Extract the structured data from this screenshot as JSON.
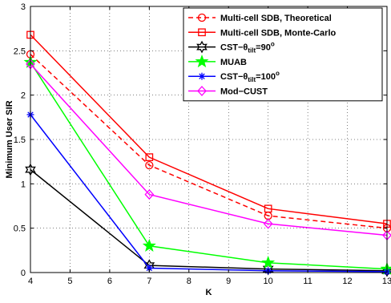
{
  "chart_data": {
    "type": "line",
    "xlabel": "K",
    "ylabel": "Minimum User SIR",
    "xlim": [
      4,
      13
    ],
    "ylim": [
      0,
      3
    ],
    "xticks": [
      4,
      5,
      6,
      7,
      8,
      9,
      10,
      11,
      12,
      13
    ],
    "yticks": [
      0,
      0.5,
      1,
      1.5,
      2,
      2.5,
      3
    ],
    "grid": true,
    "legend_position": "top-right",
    "x": [
      4,
      7,
      10,
      13
    ],
    "series": [
      {
        "name": "Multi-cell SDB, Theoretical",
        "values": [
          2.46,
          1.21,
          0.64,
          0.5
        ],
        "color": "#ff0000",
        "dash": "dashed",
        "marker": "circle"
      },
      {
        "name": "Multi-cell SDB, Monte-Carlo",
        "values": [
          2.68,
          1.3,
          0.72,
          0.55
        ],
        "color": "#ff0000",
        "dash": "solid",
        "marker": "square"
      },
      {
        "name": "CST−θ_tilt=90°",
        "legend": {
          "pre": "CST−θ",
          "sub": "tilt",
          "mid": "=90",
          "sup": "o"
        },
        "values": [
          1.16,
          0.08,
          0.04,
          0.02
        ],
        "color": "#000000",
        "dash": "solid",
        "marker": "hexagram"
      },
      {
        "name": "MUAB",
        "values": [
          2.37,
          0.3,
          0.11,
          0.04
        ],
        "color": "#00ff00",
        "dash": "solid",
        "marker": "pentagram"
      },
      {
        "name": "CST−θ_tilt=100°",
        "legend": {
          "pre": "CST−θ",
          "sub": "tilt",
          "mid": "=100",
          "sup": "o"
        },
        "values": [
          1.78,
          0.05,
          0.02,
          0.01
        ],
        "color": "#0000ff",
        "dash": "solid",
        "marker": "asterisk"
      },
      {
        "name": "Mod-CUST",
        "legend": {
          "pre": "Mod−CUST"
        },
        "values": [
          2.35,
          0.88,
          0.55,
          0.42
        ],
        "color": "#ff00ff",
        "dash": "solid",
        "marker": "diamond"
      }
    ]
  }
}
